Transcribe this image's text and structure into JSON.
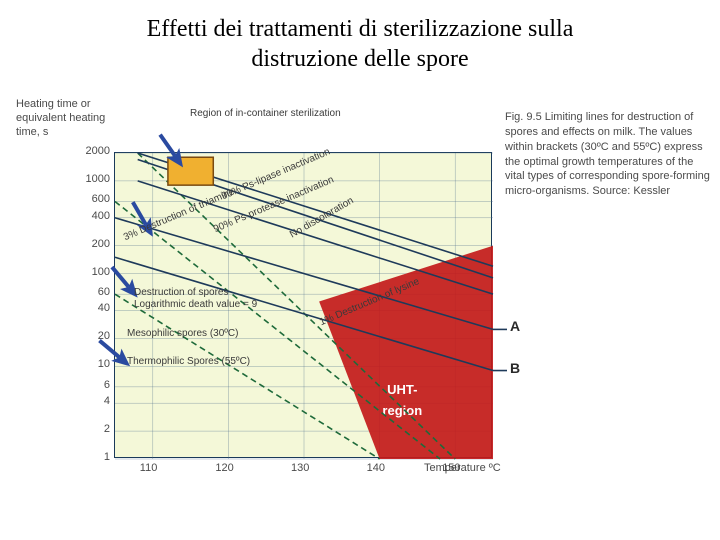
{
  "title_line1": "Effetti dei trattamenti di sterilizzazione sulla",
  "title_line2": "distruzione delle spore",
  "y_axis_label": "Heating time or equivalent heating time, s",
  "x_axis_label": "Temperature ºC",
  "caption": "Fig. 9.5  Limiting lines for destruction of spores and effects on milk. The values within brackets (30ºC and 55ºC) express the optimal growth temperatures of the vital types of corresponding spore-forming micro-organisms. Source: Kessler",
  "annot_top": "Region of in-container sterilization",
  "annot_box1": "Destruction of spores",
  "annot_box2": "Logarithmic death value = 9",
  "annot_meso": "Mesophilic spores (30ºC)",
  "annot_thermo": "Thermophilic Spores (55ºC)",
  "uht_label": "UHT-region",
  "markerA": "A",
  "markerB": "B",
  "chart": {
    "background": "#f4f8d8",
    "border": "#1a3a5a",
    "grid_color": "#4a6a8a",
    "line_color": "#1e3a5a",
    "dash_color": "#1e6a3a",
    "uht_fill": "#c21a1a",
    "uht_text": "#ffffff",
    "arrow_fill": "#2a4aa0",
    "can_box": "#f0b030",
    "can_stroke": "#7a4a10",
    "x_min": 105,
    "x_max": 155,
    "y_min": 1,
    "y_max": 2000,
    "x_ticks": [
      110,
      120,
      130,
      140,
      150
    ],
    "y_ticks": [
      2000,
      1000,
      600,
      400,
      200,
      100,
      60,
      40,
      20,
      10,
      6,
      4,
      2,
      1
    ],
    "uht_region": [
      [
        132,
        50
      ],
      [
        155,
        200
      ],
      [
        155,
        1
      ],
      [
        140,
        1
      ]
    ],
    "lines": [
      {
        "label": "90% Ps-lipase inactivation",
        "rot": -23,
        "points": [
          [
            108,
            2000
          ],
          [
            155,
            120
          ]
        ]
      },
      {
        "label": "90% Ps-protease inactivation",
        "rot": -23,
        "points": [
          [
            108,
            1000
          ],
          [
            155,
            60
          ]
        ]
      },
      {
        "label": "No discoloration",
        "rot": -24,
        "points": [
          [
            108,
            1700
          ],
          [
            155,
            90
          ]
        ]
      },
      {
        "label": "3% Destruction of thiamine",
        "rot": -23,
        "points": [
          [
            105,
            400
          ],
          [
            155,
            25
          ]
        ],
        "end": "A"
      },
      {
        "label": "1% Destruction of lysine",
        "rot": -23,
        "points": [
          [
            105,
            150
          ],
          [
            155,
            9
          ]
        ],
        "end": "B"
      }
    ],
    "dashed_lines": [
      {
        "points": [
          [
            105,
            60
          ],
          [
            140,
            1
          ]
        ],
        "label_near": "meso"
      },
      {
        "points": [
          [
            108,
            2000
          ],
          [
            150,
            1
          ]
        ],
        "label_near": "thermo3"
      },
      {
        "points": [
          [
            105,
            600
          ],
          [
            148,
            1
          ]
        ],
        "label_near": "thermo2"
      }
    ],
    "line_labels": [
      {
        "text": "90% Ps-lipase inactivation",
        "x": 119,
        "y": 740,
        "rot": -23
      },
      {
        "text": "90% Ps-protease inactivation",
        "x": 118,
        "y": 330,
        "rot": -23
      },
      {
        "text": "No discoloration",
        "x": 128,
        "y": 280,
        "rot": -30
      },
      {
        "text": "3% Destruction of thiamine",
        "x": 106,
        "y": 270,
        "rot": -23
      },
      {
        "text": "1% Destruction of lysine",
        "x": 132,
        "y": 32,
        "rot": -23
      }
    ]
  }
}
